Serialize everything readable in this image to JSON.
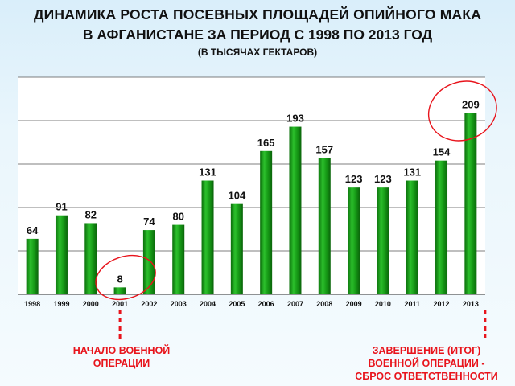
{
  "title": {
    "line1": "ДИНАМИКА РОСТА ПОСЕВНЫХ ПЛОЩАДЕЙ ОПИЙНОГО МАКА",
    "line2": "В АФГАНИСТАНЕ ЗА ПЕРИОД С 1998 ПО 2013 ГОД",
    "subtitle": "(В ТЫСЯЧАХ ГЕКТАРОВ)"
  },
  "annotations": {
    "start": {
      "line1": "НАЧАЛО ВОЕННОЙ",
      "line2": "ОПЕРАЦИИ",
      "year": "2001"
    },
    "end": {
      "line1": "ЗАВЕРШЕНИЕ (ИТОГ)",
      "line2": "ВОЕННОЙ ОПЕРАЦИИ -",
      "line3": "СБРОС ОТВЕТСТВЕННОСТИ",
      "year": "2013"
    }
  },
  "colors": {
    "bar": "#169a16",
    "annotation": "#e8141c",
    "gridline": "#555555"
  },
  "chart_data": {
    "type": "bar",
    "title": "ДИНАМИКА РОСТА ПОСЕВНЫХ ПЛОЩАДЕЙ ОПИЙНОГО МАКА В АФГАНИСТАНЕ ЗА ПЕРИОД С 1998 ПО 2013 ГОД",
    "subtitle": "(В ТЫСЯЧАХ ГЕКТАРОВ)",
    "categories": [
      "1998",
      "1999",
      "2000",
      "2001",
      "2002",
      "2003",
      "2004",
      "2005",
      "2006",
      "2007",
      "2008",
      "2009",
      "2010",
      "2011",
      "2012",
      "2013"
    ],
    "values": [
      64,
      91,
      82,
      8,
      74,
      80,
      131,
      104,
      165,
      193,
      157,
      123,
      123,
      131,
      154,
      209
    ],
    "xlabel": "",
    "ylabel": "",
    "ylim": [
      0,
      250
    ],
    "grid": true,
    "legend": false,
    "data_labels": true
  }
}
